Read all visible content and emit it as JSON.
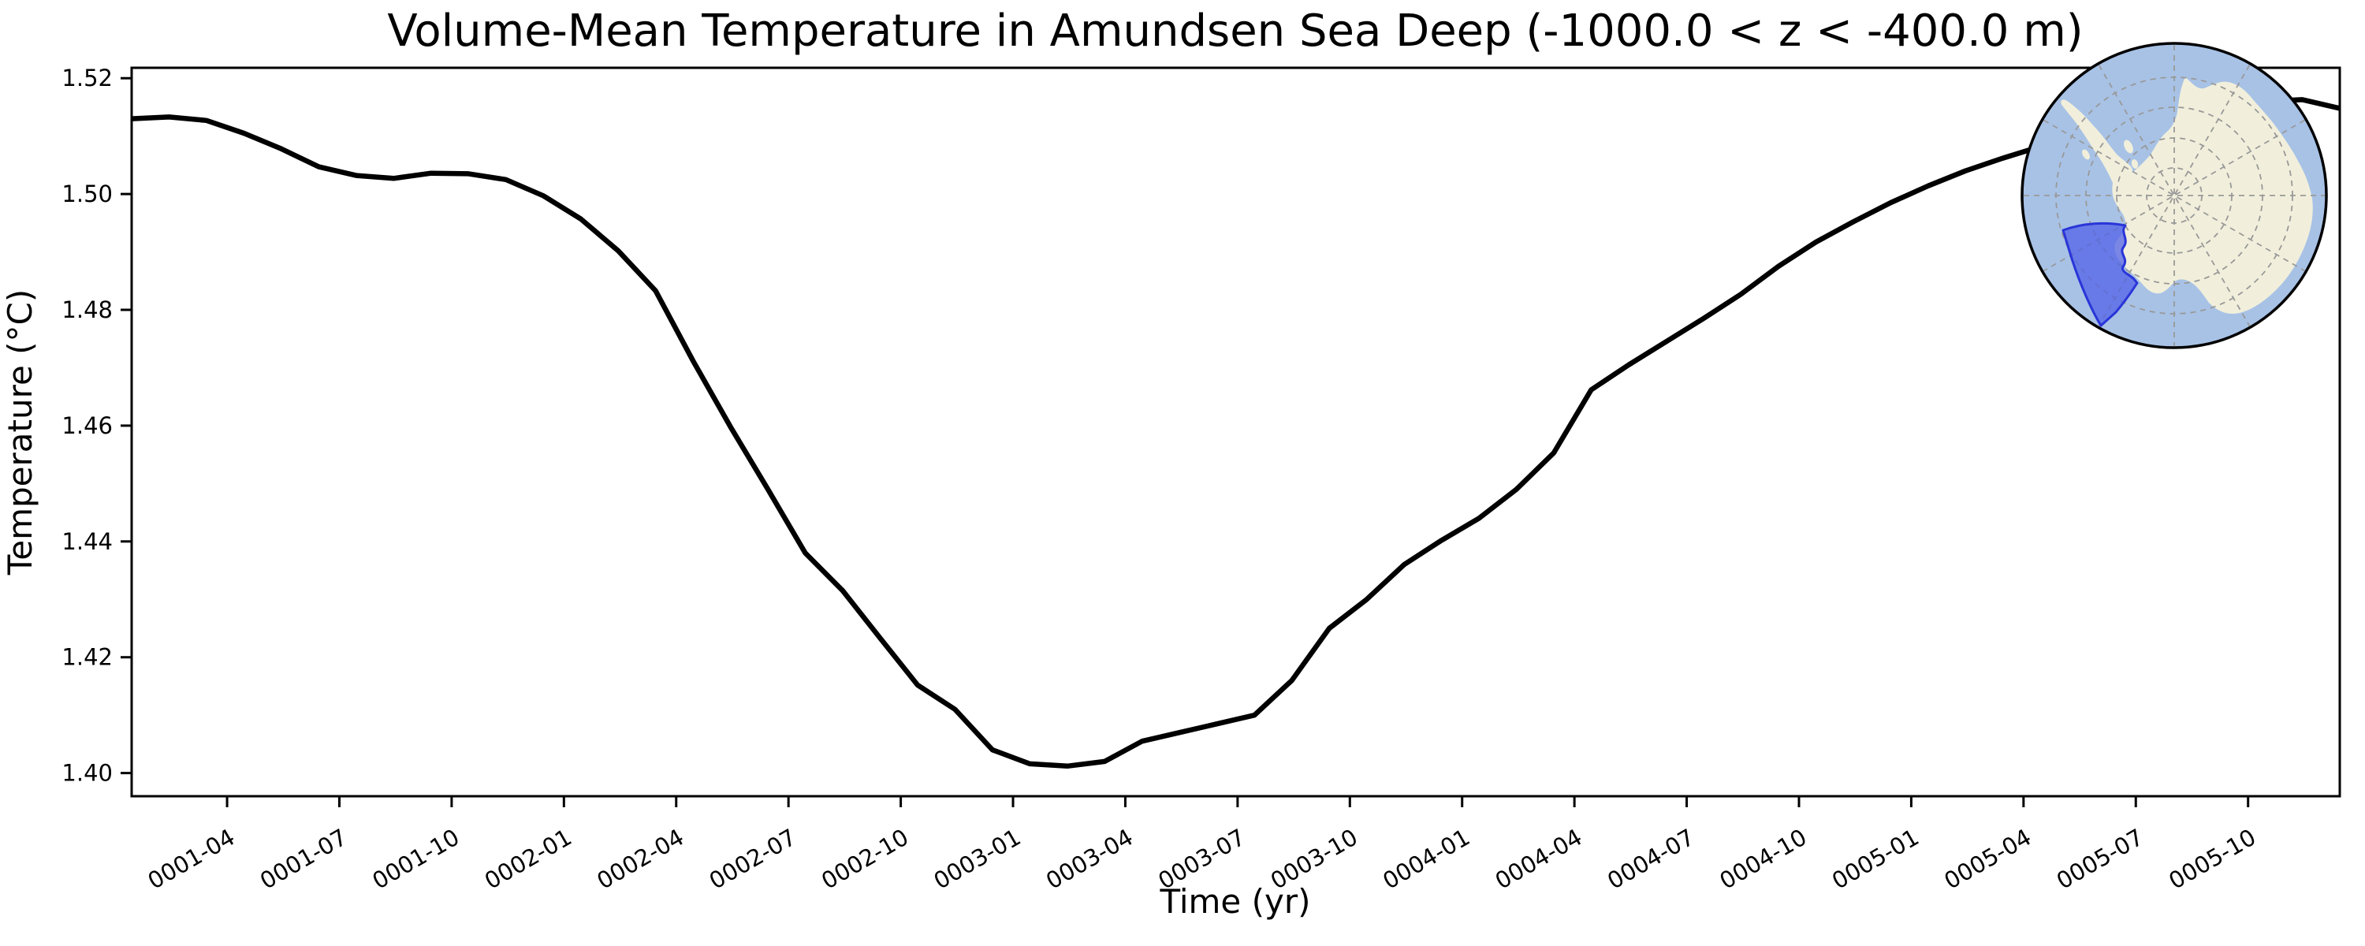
{
  "chart_data": {
    "type": "line",
    "title": "Volume-Mean Temperature in Amundsen Sea Deep (-1000.0 < z < -400.0 m)",
    "xlabel": "Time (yr)",
    "ylabel": "Temperature (°C)",
    "x": [
      "0001-01",
      "0001-02",
      "0001-03",
      "0001-04",
      "0001-05",
      "0001-06",
      "0001-07",
      "0001-08",
      "0001-09",
      "0001-10",
      "0001-11",
      "0001-12",
      "0002-01",
      "0002-02",
      "0002-03",
      "0002-04",
      "0002-05",
      "0002-06",
      "0002-07",
      "0002-08",
      "0002-09",
      "0002-10",
      "0002-11",
      "0002-12",
      "0003-01",
      "0003-02",
      "0003-03",
      "0003-04",
      "0003-05",
      "0003-06",
      "0003-07",
      "0003-08",
      "0003-09",
      "0003-10",
      "0003-11",
      "0003-12",
      "0004-01",
      "0004-02",
      "0004-03",
      "0004-04",
      "0004-05",
      "0004-06",
      "0004-07",
      "0004-08",
      "0004-09",
      "0004-10",
      "0004-11",
      "0004-12",
      "0005-01",
      "0005-02",
      "0005-03",
      "0005-04",
      "0005-05",
      "0005-06",
      "0005-07",
      "0005-08",
      "0005-09",
      "0005-10",
      "0005-11",
      "0005-12"
    ],
    "values": [
      1.513,
      1.5133,
      1.5127,
      1.5105,
      1.5078,
      1.5047,
      1.5032,
      1.5027,
      1.5036,
      1.5035,
      1.5025,
      1.4997,
      1.4957,
      1.4902,
      1.4833,
      1.4712,
      1.4598,
      1.449,
      1.438,
      1.4315,
      1.4233,
      1.4152,
      1.411,
      1.404,
      1.4016,
      1.4012,
      1.402,
      1.4055,
      1.407,
      1.4085,
      1.41,
      1.416,
      1.425,
      1.43,
      1.436,
      1.4402,
      1.444,
      1.449,
      1.4553,
      1.4662,
      1.4705,
      1.4745,
      1.4785,
      1.4827,
      1.4875,
      1.4917,
      1.4952,
      1.4985,
      1.5014,
      1.504,
      1.5062,
      1.5082,
      1.51,
      1.5117,
      1.5132,
      1.5145,
      1.5154,
      1.516,
      1.5163,
      1.5148
    ],
    "xtick_labels": [
      "0001-04",
      "0001-07",
      "0001-10",
      "0002-01",
      "0002-04",
      "0002-07",
      "0002-10",
      "0003-01",
      "0003-04",
      "0003-07",
      "0003-10",
      "0004-01",
      "0004-04",
      "0004-07",
      "0004-10",
      "0005-01",
      "0005-04",
      "0005-07",
      "0005-10"
    ],
    "ytick_values": [
      "1.40",
      "1.42",
      "1.44",
      "1.46",
      "1.48",
      "1.50",
      "1.52"
    ],
    "ylim": [
      1.396,
      1.5218
    ],
    "grid": false,
    "legend_position": "none",
    "line_color": "#000000",
    "line_width": 6.5
  },
  "inset_map": {
    "description": "South polar stereographic map of Antarctica with highlighted Amundsen Sea sector",
    "ocean_color": "#a8c2e6",
    "land_color": "#f1efdb",
    "graticule_color": "#999999",
    "outline_color": "#000000",
    "highlight_fill": "#4e5ee8",
    "highlight_stroke": "#2a35d8"
  }
}
